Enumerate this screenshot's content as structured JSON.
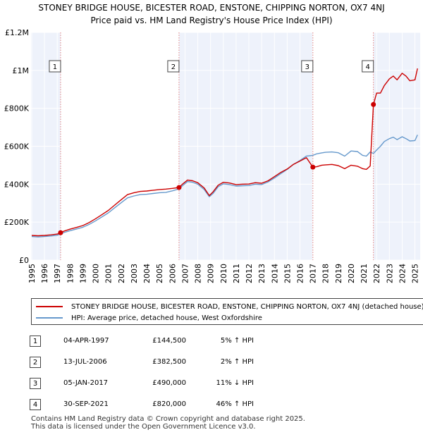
{
  "chart_data": {
    "type": "line",
    "title": "STONEY BRIDGE HOUSE, BICESTER ROAD, ENSTONE, CHIPPING NORTON, OX7 4NJ",
    "subtitle": "Price paid vs. HM Land Registry's House Price Index (HPI)",
    "xlabel": "",
    "ylabel": "",
    "xlim": [
      1995,
      2025.3
    ],
    "ylim": [
      0,
      1200000
    ],
    "y_ticks": [
      {
        "value": 0,
        "label": "£0"
      },
      {
        "value": 200000,
        "label": "£200K"
      },
      {
        "value": 400000,
        "label": "£400K"
      },
      {
        "value": 600000,
        "label": "£600K"
      },
      {
        "value": 800000,
        "label": "£800K"
      },
      {
        "value": 1000000,
        "label": "£1M"
      },
      {
        "value": 1200000,
        "label": "£1.2M"
      }
    ],
    "x_ticks": [
      "1995",
      "1996",
      "1997",
      "1998",
      "1999",
      "2000",
      "2001",
      "2002",
      "2003",
      "2004",
      "2005",
      "2006",
      "2007",
      "2008",
      "2009",
      "2010",
      "2011",
      "2012",
      "2013",
      "2014",
      "2015",
      "2016",
      "2017",
      "2018",
      "2019",
      "2020",
      "2021",
      "2022",
      "2023",
      "2024",
      "2025"
    ],
    "grid": true,
    "series": [
      {
        "name": "STONEY BRIDGE HOUSE, BICESTER ROAD, ENSTONE, CHIPPING NORTON, OX7 4NJ (detached house)",
        "color": "#cc0000",
        "x": [
          1995.0,
          1995.5,
          1996.0,
          1996.5,
          1997.0,
          1997.26,
          1997.5,
          1998.0,
          1998.5,
          1999.0,
          1999.5,
          2000.0,
          2000.5,
          2001.0,
          2001.5,
          2002.0,
          2002.5,
          2003.0,
          2003.5,
          2004.0,
          2004.5,
          2005.0,
          2005.5,
          2006.0,
          2006.53,
          2006.8,
          2007.2,
          2007.6,
          2008.0,
          2008.5,
          2008.9,
          2009.2,
          2009.6,
          2010.0,
          2010.5,
          2011.0,
          2011.5,
          2012.0,
          2012.5,
          2013.0,
          2013.5,
          2014.0,
          2014.5,
          2015.0,
          2015.5,
          2016.0,
          2016.5,
          2017.01,
          2017.3,
          2017.7,
          2018.0,
          2018.5,
          2019.0,
          2019.5,
          2020.0,
          2020.5,
          2020.9,
          2021.2,
          2021.5,
          2021.75,
          2022.0,
          2022.3,
          2022.6,
          2023.0,
          2023.3,
          2023.6,
          2024.0,
          2024.3,
          2024.6,
          2025.0,
          2025.2
        ],
        "y": [
          130000,
          128000,
          130000,
          133000,
          137000,
          144500,
          152000,
          163000,
          172000,
          182000,
          198000,
          218000,
          240000,
          262000,
          290000,
          318000,
          345000,
          355000,
          362000,
          364000,
          368000,
          372000,
          374000,
          378000,
          382500,
          400000,
          422000,
          418000,
          408000,
          380000,
          340000,
          360000,
          395000,
          410000,
          406000,
          398000,
          400000,
          401000,
          408000,
          405000,
          418000,
          440000,
          462000,
          480000,
          505000,
          522000,
          540000,
          490000,
          492000,
          500000,
          502000,
          504000,
          498000,
          482000,
          500000,
          495000,
          482000,
          478000,
          496000,
          820000,
          880000,
          880000,
          920000,
          955000,
          970000,
          950000,
          985000,
          970000,
          945000,
          950000,
          1010000
        ]
      },
      {
        "name": "HPI: Average price, detached house, West Oxfordshire",
        "color": "#6699cc",
        "x": [
          1995.0,
          1995.5,
          1996.0,
          1996.5,
          1997.0,
          1997.26,
          1997.5,
          1998.0,
          1998.5,
          1999.0,
          1999.5,
          2000.0,
          2000.5,
          2001.0,
          2001.5,
          2002.0,
          2002.5,
          2003.0,
          2003.5,
          2004.0,
          2004.5,
          2005.0,
          2005.5,
          2006.0,
          2006.53,
          2006.8,
          2007.2,
          2007.6,
          2008.0,
          2008.5,
          2008.9,
          2009.2,
          2009.6,
          2010.0,
          2010.5,
          2011.0,
          2011.5,
          2012.0,
          2012.5,
          2013.0,
          2013.5,
          2014.0,
          2014.5,
          2015.0,
          2015.5,
          2016.0,
          2016.5,
          2017.01,
          2017.3,
          2017.7,
          2018.0,
          2018.5,
          2019.0,
          2019.5,
          2020.0,
          2020.5,
          2020.9,
          2021.2,
          2021.5,
          2021.75,
          2022.0,
          2022.3,
          2022.6,
          2023.0,
          2023.3,
          2023.6,
          2024.0,
          2024.3,
          2024.6,
          2025.0,
          2025.2
        ],
        "y": [
          124000,
          122000,
          124000,
          127000,
          131000,
          138000,
          145000,
          155000,
          164000,
          173000,
          188000,
          207000,
          228000,
          249000,
          276000,
          302000,
          328000,
          338000,
          345000,
          347000,
          351000,
          355000,
          357000,
          365000,
          375000,
          392000,
          414000,
          410000,
          400000,
          372000,
          334000,
          352000,
          387000,
          402000,
          398000,
          390000,
          392000,
          393000,
          400000,
          398000,
          412000,
          433000,
          456000,
          478000,
          505000,
          525000,
          548000,
          552000,
          560000,
          565000,
          568000,
          570000,
          566000,
          548000,
          575000,
          572000,
          552000,
          548000,
          570000,
          562000,
          580000,
          600000,
          625000,
          640000,
          648000,
          635000,
          650000,
          640000,
          628000,
          630000,
          660000
        ]
      }
    ],
    "sales": [
      {
        "num": "1",
        "x": 1997.26,
        "price": 144500
      },
      {
        "num": "2",
        "x": 2006.53,
        "price": 382500
      },
      {
        "num": "3",
        "x": 2017.01,
        "price": 490000
      },
      {
        "num": "4",
        "x": 2021.75,
        "price": 820000
      }
    ],
    "purchase_shading": [
      [
        1997.26,
        2006.53
      ],
      [
        2017.01,
        2021.75
      ]
    ],
    "colors": {
      "price_line": "#cc0000",
      "hpi_line": "#6699cc",
      "plot_bg": "#eef2fb",
      "grid": "#ffffff",
      "vline": "#e08080"
    }
  },
  "legend": {
    "items": [
      {
        "label": "STONEY BRIDGE HOUSE, BICESTER ROAD, ENSTONE, CHIPPING NORTON, OX7 4NJ (detached house)",
        "color": "#cc0000"
      },
      {
        "label": "HPI: Average price, detached house, West Oxfordshire",
        "color": "#6699cc"
      }
    ]
  },
  "sales_table": [
    {
      "num": "1",
      "date": "04-APR-1997",
      "price": "£144,500",
      "hpi": "5% ↑ HPI"
    },
    {
      "num": "2",
      "date": "13-JUL-2006",
      "price": "£382,500",
      "hpi": "2% ↑ HPI"
    },
    {
      "num": "3",
      "date": "05-JAN-2017",
      "price": "£490,000",
      "hpi": "11% ↓ HPI"
    },
    {
      "num": "4",
      "date": "30-SEP-2021",
      "price": "£820,000",
      "hpi": "46% ↑ HPI"
    }
  ],
  "footer": {
    "line1": "Contains HM Land Registry data © Crown copyright and database right 2025.",
    "line2": "This data is licensed under the Open Government Licence v3.0."
  }
}
